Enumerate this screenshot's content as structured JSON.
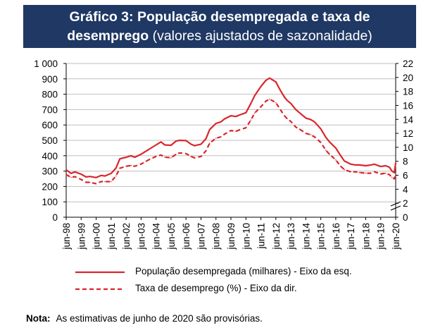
{
  "title": {
    "line1": "Gráfico 3: População desempregada e taxa de",
    "line2_bold": "desemprego",
    "line2_rest": " (valores ajustados de sazonalidade)"
  },
  "colors": {
    "header_bg": "#1f3864",
    "series": "#d9262c",
    "grid": "#bfbfbf"
  },
  "note": {
    "label": "Nota:",
    "text": "As estimativas de junho de 2020 são provisórias."
  },
  "chart_data": {
    "type": "line",
    "title": "Gráfico 3: População desempregada e taxa de desemprego (valores ajustados de sazonalidade)",
    "x_labels": [
      "jun-98",
      "jun-99",
      "jun-00",
      "jun-01",
      "jun-02",
      "jun-03",
      "jun-04",
      "jun-05",
      "jun-06",
      "jun-07",
      "jun-08",
      "jun-09",
      "jun-10",
      "jun-11",
      "jun-12",
      "jun-13",
      "jun-14",
      "jun-15",
      "jun-16",
      "jun-17",
      "jun-18",
      "jun-19",
      "jun-20"
    ],
    "y_left": {
      "ticks": [
        "0",
        "100",
        "200",
        "300",
        "400",
        "500",
        "600",
        "700",
        "800",
        "900",
        "1 000"
      ],
      "range": [
        0,
        1000
      ]
    },
    "y_right": {
      "ticks": [
        "0",
        "2",
        "4",
        "6",
        "8",
        "10",
        "12",
        "14",
        "16",
        "18",
        "20",
        "22"
      ],
      "range": [
        0,
        22
      ]
    },
    "x_range": [
      1998.42,
      2020.42
    ],
    "series": [
      {
        "name": "População desempregada (milhares) - Eixo da esq.",
        "axis": "left",
        "style": "solid",
        "x": [
          1998.42,
          1998.75,
          1999.0,
          1999.42,
          1999.75,
          2000.0,
          2000.42,
          2000.75,
          2001.0,
          2001.42,
          2001.75,
          2002.0,
          2002.42,
          2002.75,
          2003.0,
          2003.42,
          2003.75,
          2004.0,
          2004.42,
          2004.75,
          2005.0,
          2005.42,
          2005.75,
          2006.0,
          2006.42,
          2006.75,
          2007.0,
          2007.42,
          2007.75,
          2008.0,
          2008.42,
          2008.75,
          2009.0,
          2009.42,
          2009.75,
          2010.0,
          2010.42,
          2010.75,
          2011.0,
          2011.42,
          2011.75,
          2012.0,
          2012.42,
          2012.75,
          2013.0,
          2013.17,
          2013.42,
          2013.75,
          2014.0,
          2014.42,
          2014.75,
          2015.0,
          2015.42,
          2015.75,
          2016.0,
          2016.42,
          2016.75,
          2017.0,
          2017.42,
          2017.75,
          2018.0,
          2018.42,
          2018.75,
          2019.0,
          2019.42,
          2019.75,
          2020.0,
          2020.17,
          2020.33,
          2020.42
        ],
        "values": [
          308,
          285,
          295,
          280,
          262,
          265,
          258,
          272,
          268,
          285,
          320,
          380,
          390,
          400,
          390,
          410,
          430,
          445,
          470,
          490,
          470,
          468,
          495,
          500,
          498,
          475,
          465,
          475,
          510,
          570,
          610,
          620,
          640,
          660,
          655,
          665,
          680,
          740,
          790,
          850,
          890,
          905,
          880,
          820,
          780,
          760,
          740,
          700,
          680,
          645,
          635,
          620,
          575,
          520,
          490,
          450,
          400,
          365,
          345,
          340,
          340,
          335,
          340,
          345,
          330,
          335,
          325,
          300,
          290,
          355
        ]
      },
      {
        "name": "Taxa de desemprego (%) - Eixo da dir.",
        "axis": "right",
        "style": "dashed",
        "x": [
          1998.42,
          1998.75,
          1999.0,
          1999.42,
          1999.75,
          2000.0,
          2000.42,
          2000.75,
          2001.0,
          2001.42,
          2001.75,
          2002.0,
          2002.42,
          2002.75,
          2003.0,
          2003.42,
          2003.75,
          2004.0,
          2004.42,
          2004.75,
          2005.0,
          2005.42,
          2005.75,
          2006.0,
          2006.42,
          2006.75,
          2007.0,
          2007.42,
          2007.75,
          2008.0,
          2008.42,
          2008.75,
          2009.0,
          2009.42,
          2009.75,
          2010.0,
          2010.42,
          2010.75,
          2011.0,
          2011.42,
          2011.75,
          2012.0,
          2012.42,
          2012.75,
          2013.0,
          2013.17,
          2013.42,
          2013.75,
          2014.0,
          2014.42,
          2014.75,
          2015.0,
          2015.42,
          2015.75,
          2016.0,
          2016.42,
          2016.75,
          2017.0,
          2017.42,
          2017.75,
          2018.0,
          2018.42,
          2018.75,
          2019.0,
          2019.42,
          2019.75,
          2020.0,
          2020.17,
          2020.33,
          2020.42
        ],
        "values": [
          6.1,
          5.7,
          5.8,
          5.4,
          5.0,
          5.0,
          4.8,
          5.1,
          5.1,
          5.1,
          5.9,
          7.0,
          7.3,
          7.4,
          7.3,
          7.6,
          8.0,
          8.3,
          8.7,
          8.9,
          8.6,
          8.5,
          9.0,
          9.2,
          9.1,
          8.7,
          8.5,
          8.7,
          9.5,
          10.6,
          11.3,
          11.5,
          11.9,
          12.4,
          12.3,
          12.5,
          12.8,
          13.9,
          14.9,
          15.8,
          16.6,
          16.9,
          16.4,
          15.3,
          14.5,
          14.1,
          13.7,
          12.9,
          12.6,
          12.0,
          11.8,
          11.5,
          10.7,
          9.6,
          9.0,
          8.2,
          7.3,
          6.8,
          6.5,
          6.5,
          6.4,
          6.3,
          6.3,
          6.5,
          6.2,
          6.3,
          6.1,
          5.7,
          5.5,
          6.1
        ]
      }
    ]
  }
}
